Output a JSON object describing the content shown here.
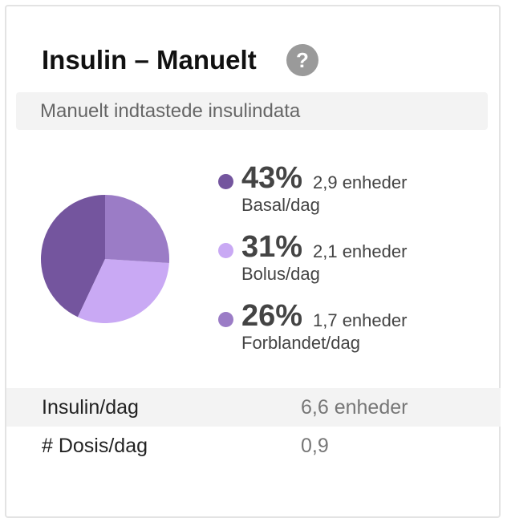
{
  "header": {
    "title": "Insulin – Manuelt",
    "help": "?"
  },
  "subtitle": "Manuelt indtastede insulindata",
  "chart_data": {
    "type": "pie",
    "categories": [
      "Basal/dag",
      "Bolus/dag",
      "Forblandet/dag"
    ],
    "values": [
      43,
      31,
      26
    ],
    "value_labels": [
      "43%",
      "31%",
      "26%"
    ],
    "units": [
      "2,9 enheder",
      "2,1 enheder",
      "1,7 enheder"
    ],
    "colors": [
      "#74559e",
      "#c9a9f4",
      "#9b7cc6"
    ]
  },
  "table": {
    "rows": [
      [
        "Insulin/dag",
        "6,6 enheder"
      ],
      [
        "# Dosis/dag",
        "0,9"
      ]
    ]
  }
}
